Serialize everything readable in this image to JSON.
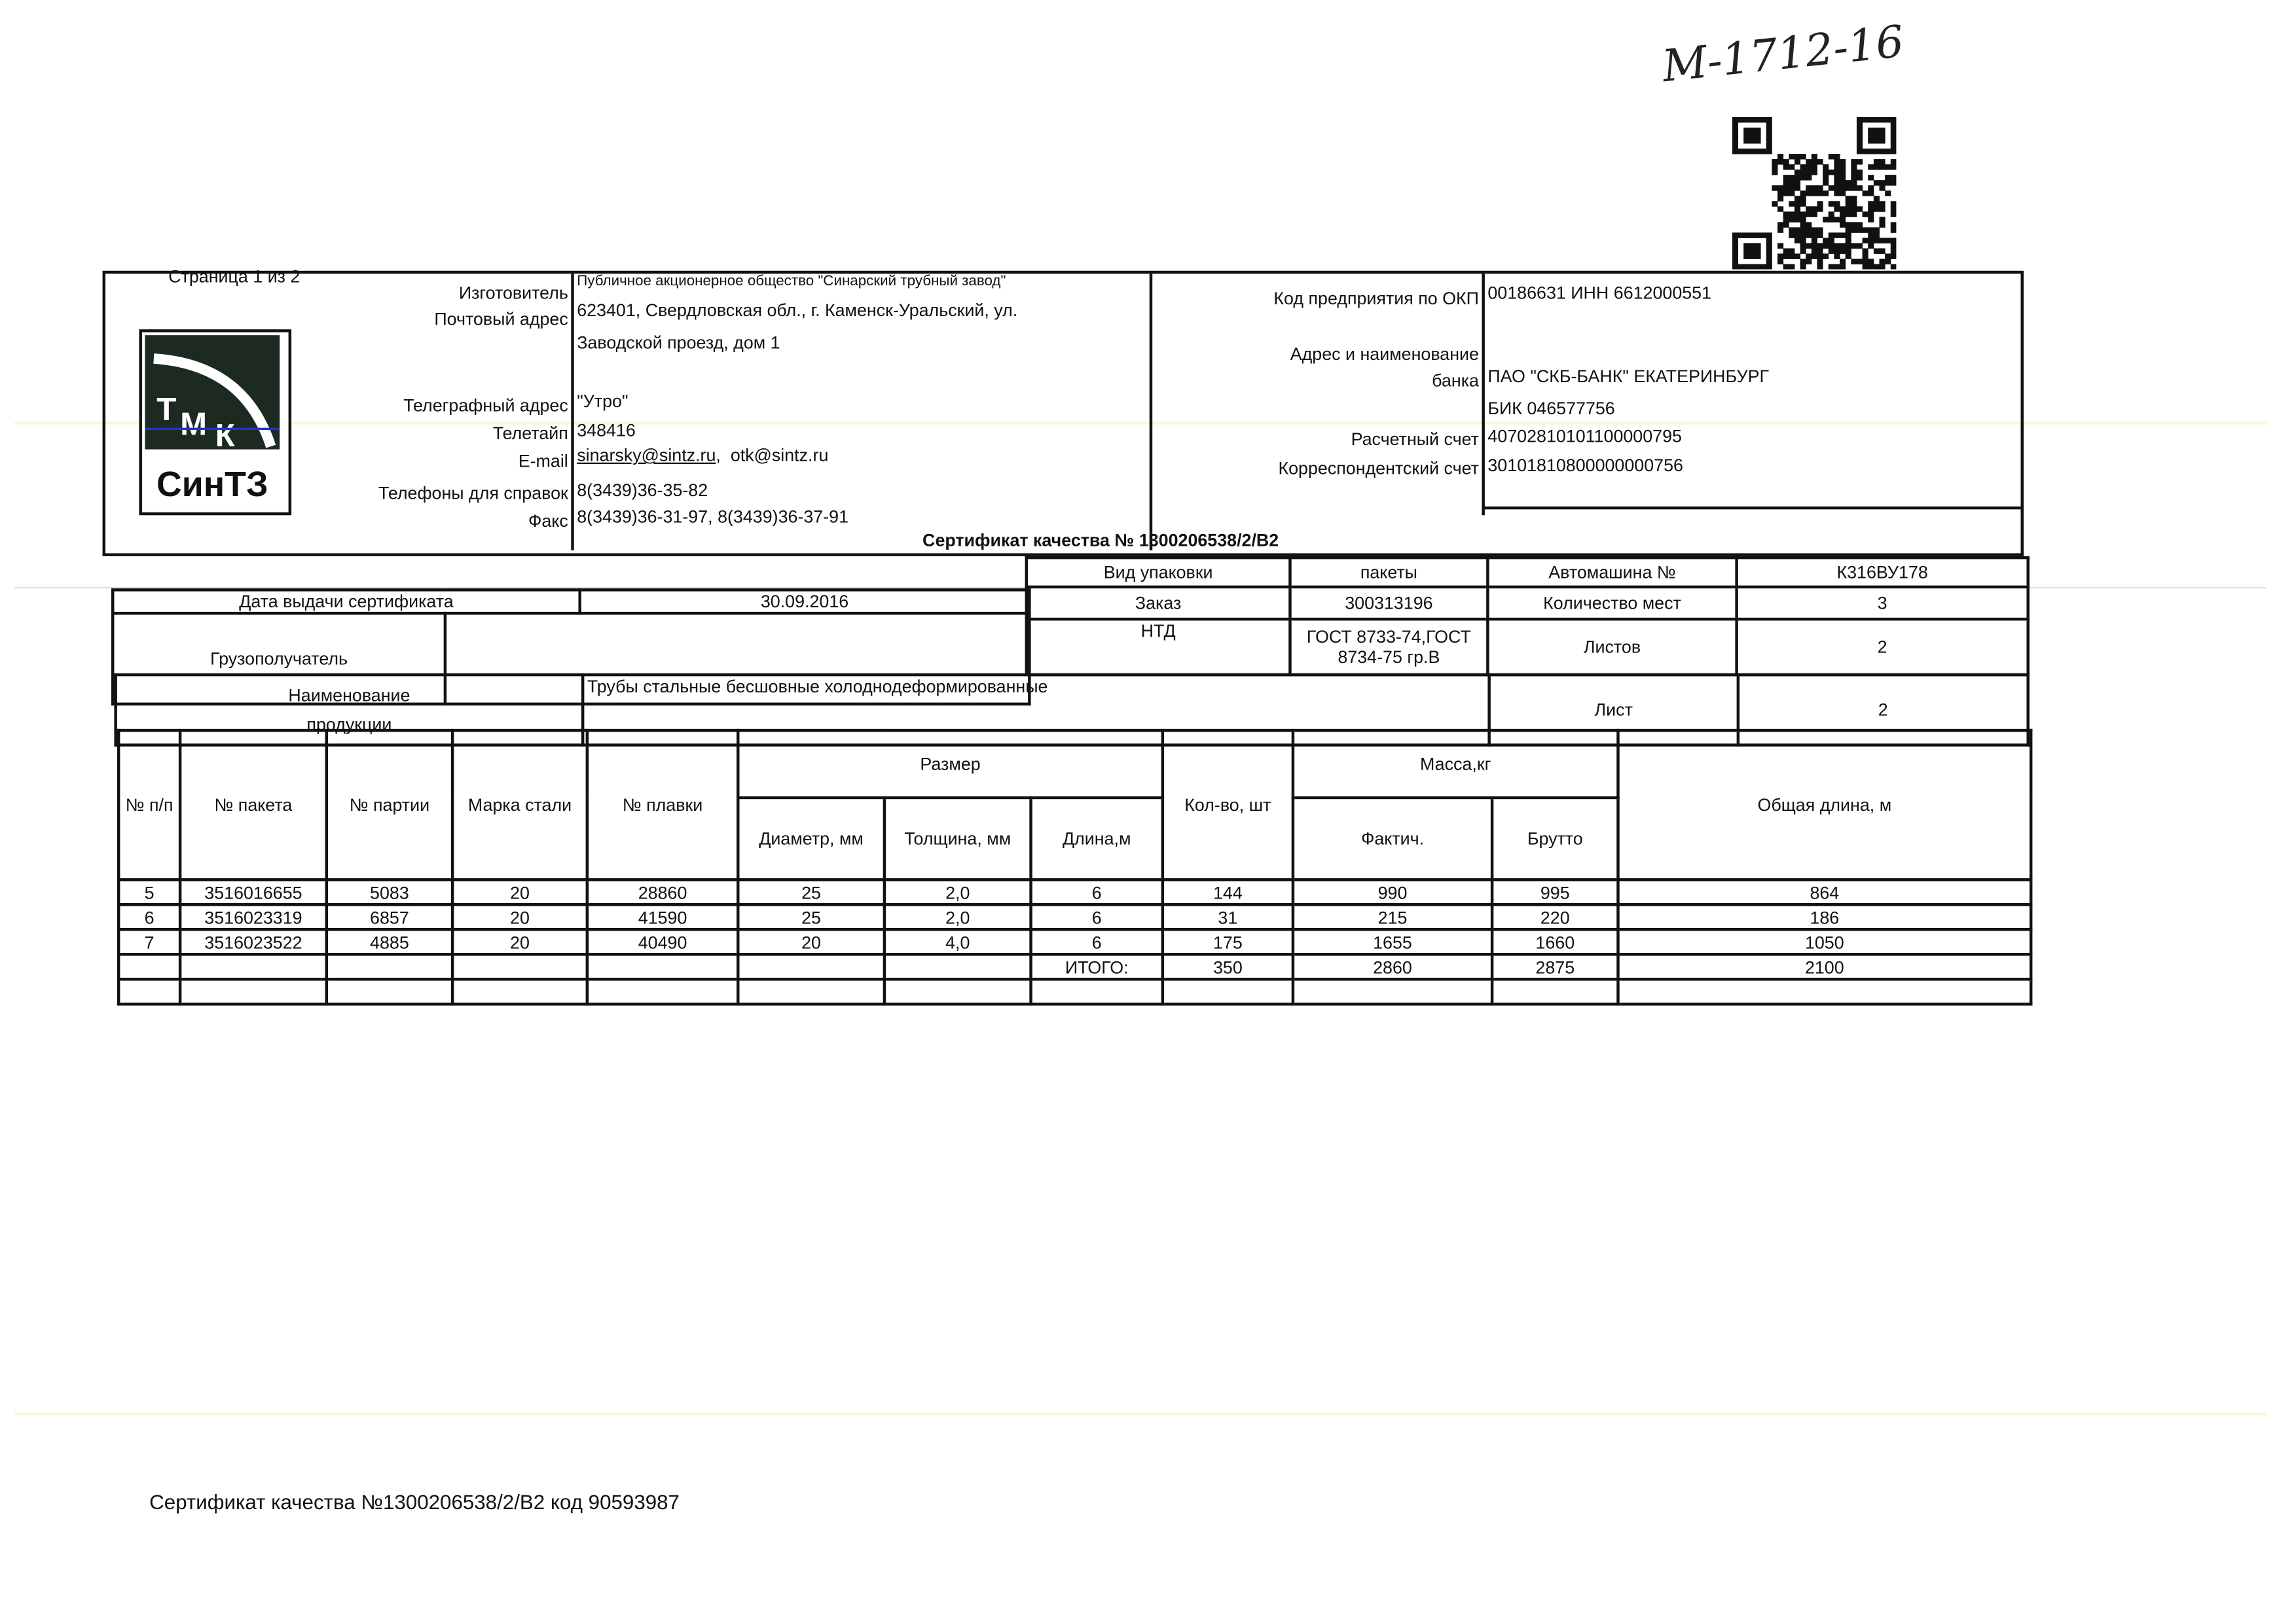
{
  "handwritten_note": "М-1712-16",
  "page_indicator": "Страница 1 из 2",
  "logo": {
    "top_text": "ТМК",
    "bottom_text": "СинТЗ"
  },
  "manufacturer": {
    "rows": [
      {
        "label": "Изготовитель",
        "value": "Публичное акционерное общество \"Синарский трубный завод\""
      },
      {
        "label": "Почтовый адрес",
        "value": "623401, Свердловская обл., г. Каменск-Уральский, ул."
      },
      {
        "label": "",
        "value": "Заводской проезд, дом 1"
      },
      {
        "label": "Телеграфный адрес",
        "value": "\"Утро\""
      },
      {
        "label": "Телетайп",
        "value": "348416"
      },
      {
        "label": "E-mail",
        "value": "sinarsky@sintz.ru",
        "value2": "otk@sintz.ru"
      },
      {
        "label": "Телефоны для справок",
        "value": "8(3439)36-35-82"
      },
      {
        "label": "Факс",
        "value": "8(3439)36-31-97, 8(3439)36-37-91"
      }
    ]
  },
  "bank": {
    "rows": [
      {
        "label": "Код предприятия по ОКП",
        "value": "00186631 ИНН 6612000551"
      },
      {
        "label": "Адрес и наименование",
        "value": ""
      },
      {
        "label": "банка",
        "value": "ПАО \"СКБ-БАНК\" ЕКАТЕРИНБУРГ"
      },
      {
        "label": "",
        "value": "БИК 046577756"
      },
      {
        "label": "Расчетный счет",
        "value": "40702810101100000795"
      },
      {
        "label": "Корреспондентский счет",
        "value": "30101810800000000756"
      }
    ]
  },
  "certificate_title": "Сертификат качества №  1300206538/2/В2",
  "info": {
    "issue_date_label": "Дата выдачи сертификата",
    "issue_date": "30.09.2016",
    "consignee_label": "Грузополучатель",
    "consignee": "",
    "product_label_1": "Наименование",
    "product_label_2": "продукции",
    "product": "Трубы стальные бесшовные холоднодеформированные",
    "packaging_label": "Вид упаковки",
    "packaging": "пакеты",
    "order_label": "Заказ",
    "order": "300313196",
    "ntd_label": "НТД",
    "ntd": "ГОСТ 8733-74,ГОСТ 8734-75 гр.В",
    "vehicle_label": "Автомашина №",
    "vehicle": "К316ВУ178",
    "places_label": "Количество мест",
    "places": "3",
    "sheets_label": "Листов",
    "sheets": "2",
    "sheet_label": "Лист",
    "sheet": "2"
  },
  "table": {
    "headers": {
      "num": "№ п/п",
      "package": "№ пакета",
      "batch": "№ партии",
      "steel": "Марка стали",
      "heat": "№ плавки",
      "size": "Размер",
      "diameter": "Диаметр, мм",
      "thickness": "Толщина, мм",
      "length": "Длина,м",
      "qty": "Кол-во, шт",
      "mass": "Масса,кг",
      "actual": "Фактич.",
      "gross": "Брутто",
      "total_length": "Общая длина, м"
    },
    "rows": [
      {
        "num": "5",
        "package": "3516016655",
        "batch": "5083",
        "steel": "20",
        "heat": "28860",
        "diameter": "25",
        "thickness": "2,0",
        "length": "6",
        "qty": "144",
        "actual": "990",
        "gross": "995",
        "total_length": "864"
      },
      {
        "num": "6",
        "package": "3516023319",
        "batch": "6857",
        "steel": "20",
        "heat": "41590",
        "diameter": "25",
        "thickness": "2,0",
        "length": "6",
        "qty": "31",
        "actual": "215",
        "gross": "220",
        "total_length": "186"
      },
      {
        "num": "7",
        "package": "3516023522",
        "batch": "4885",
        "steel": "20",
        "heat": "40490",
        "diameter": "20",
        "thickness": "4,0",
        "length": "6",
        "qty": "175",
        "actual": "1655",
        "gross": "1660",
        "total_length": "1050"
      }
    ],
    "total": {
      "label": "ИТОГО:",
      "qty": "350",
      "actual": "2860",
      "gross": "2875",
      "total_length": "2100"
    }
  },
  "footer": "Сертификат качества №1300206538/2/В2 код 90593987"
}
